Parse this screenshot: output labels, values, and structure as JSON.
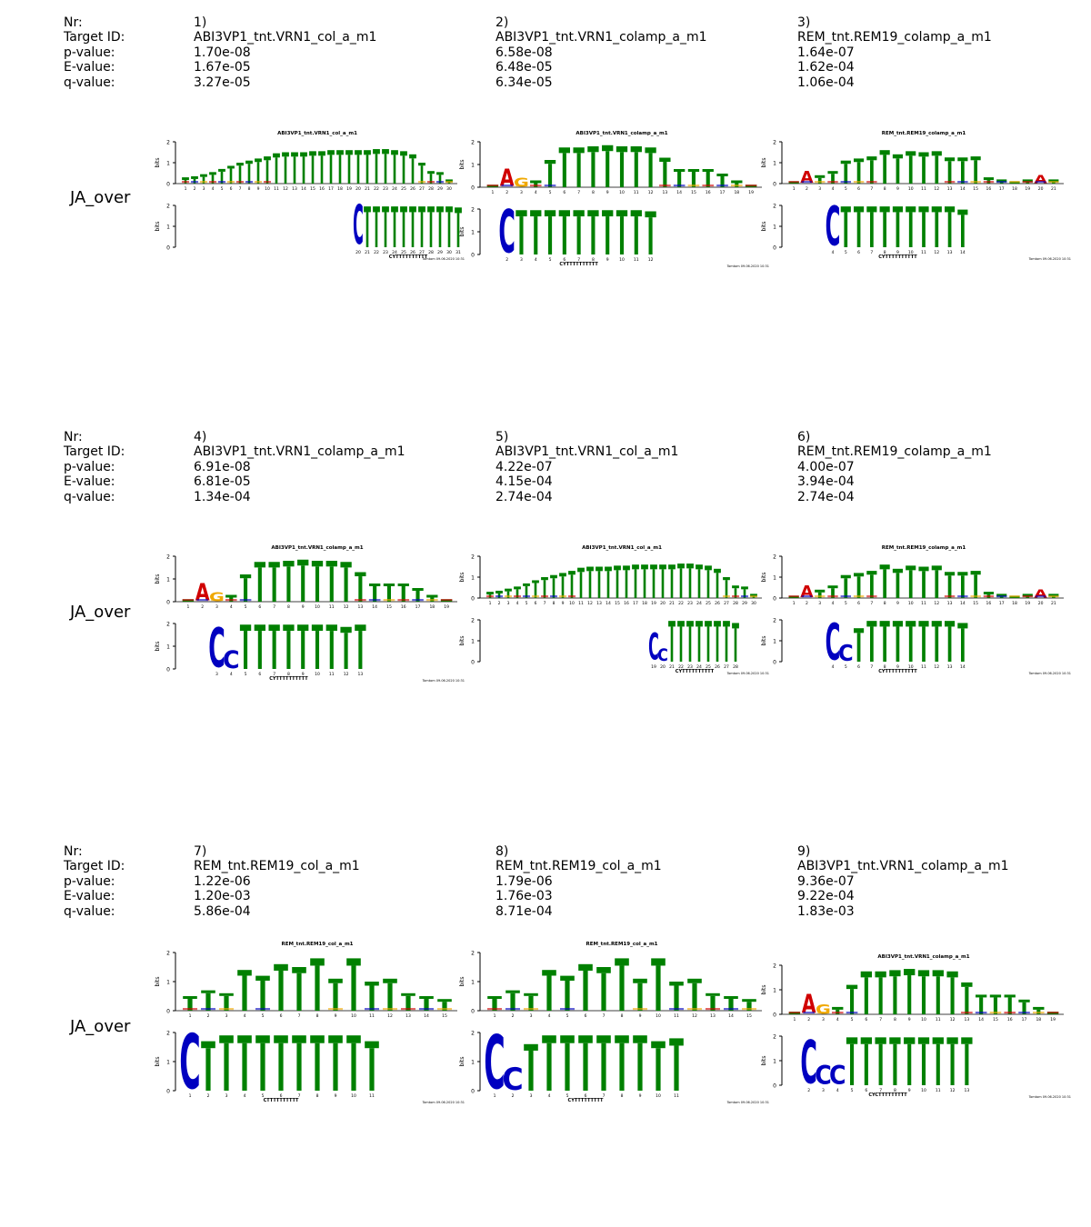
{
  "field_labels": [
    "Nr:",
    "Target ID:",
    "p-value:",
    "E-value:",
    "q-value:"
  ],
  "rows": [
    {
      "query": "JA_over",
      "cells": [
        {
          "nr": "1)",
          "target": "ABI3VP1_tnt.VRN1_col_a_m1",
          "p": "1.70e-08",
          "e": "1.67e-05",
          "q": "3.27e-05",
          "logo_title": "ABI3VP1_tnt.VRN1_col_a_m1",
          "heights": [
            0.3,
            0.35,
            0.45,
            0.55,
            0.7,
            0.85,
            1.0,
            1.1,
            1.2,
            1.3,
            1.45,
            1.5,
            1.5,
            1.5,
            1.55,
            1.55,
            1.6,
            1.6,
            1.6,
            1.6,
            1.6,
            1.65,
            1.65,
            1.6,
            1.55,
            1.4,
            1.0,
            0.6,
            0.55,
            0.2
          ],
          "special": [],
          "query_start": 19,
          "query_heights": [
            2.0,
            1.95,
            1.95,
            1.95,
            1.95,
            1.95,
            1.95,
            1.95,
            1.95,
            1.95,
            1.95,
            1.9
          ],
          "query_glyphs": [
            {
              "i": 0,
              "letter": "C",
              "h": 1.95
            }
          ],
          "consensus": "CYTTTTTTTTTT",
          "footer": "Tomtom 09.06.2020 10:31"
        },
        {
          "nr": "2)",
          "target": "ABI3VP1_tnt.VRN1_colamp_a_m1",
          "p": "6.58e-08",
          "e": "6.48e-05",
          "q": "6.34e-05",
          "logo_title": "ABI3VP1_tnt.VRN1_colamp_a_m1",
          "heights": [
            0.1,
            0.8,
            0.4,
            0.3,
            1.2,
            1.75,
            1.75,
            1.8,
            1.85,
            1.8,
            1.8,
            1.75,
            1.3,
            0.8,
            0.8,
            0.8,
            0.6,
            0.3,
            0.1
          ],
          "special": [
            {
              "i": 1,
              "letter": "A",
              "color": "#d00000"
            },
            {
              "i": 2,
              "letter": "G",
              "color": "#f0a800"
            }
          ],
          "query_start": 1,
          "query_heights": [
            2.0,
            1.95,
            1.95,
            1.95,
            1.95,
            1.95,
            1.95,
            1.95,
            1.95,
            1.95,
            1.9
          ],
          "query_glyphs": [
            {
              "i": 0,
              "letter": "C",
              "h": 1.95
            }
          ],
          "consensus": "CYTTTTTTTTTT",
          "footer": "Tomtom 09.06.2020 10:31"
        },
        {
          "nr": "3)",
          "target": "REM_tnt.REM19_colamp_a_m1",
          "p": "1.64e-07",
          "e": "1.62e-04",
          "q": "1.06e-04",
          "logo_title": "REM_tnt.REM19_colamp_a_m1",
          "heights": [
            0.1,
            0.6,
            0.4,
            0.6,
            1.1,
            1.2,
            1.3,
            1.6,
            1.4,
            1.55,
            1.5,
            1.55,
            1.25,
            1.25,
            1.3,
            0.3,
            0.2,
            0.1,
            0.2,
            0.4,
            0.2
          ],
          "special": [
            {
              "i": 1,
              "letter": "A",
              "color": "#d00000"
            },
            {
              "i": 19,
              "letter": "A",
              "color": "#d00000"
            }
          ],
          "query_start": 3,
          "query_heights": [
            1.95,
            1.95,
            1.95,
            1.95,
            1.95,
            1.95,
            1.95,
            1.95,
            1.95,
            1.95,
            1.8
          ],
          "query_glyphs": [
            {
              "i": 0,
              "letter": "C",
              "h": 1.95
            }
          ],
          "consensus": "CYTTTTTTTTTT",
          "footer": "Tomtom 09.06.2020 10:31"
        }
      ]
    },
    {
      "query": "JA_over",
      "cells": [
        {
          "nr": "4)",
          "target": "ABI3VP1_tnt.VRN1_colamp_a_m1",
          "p": "6.91e-08",
          "e": "6.81e-05",
          "q": "1.34e-04",
          "logo_title": "ABI3VP1_tnt.VRN1_colamp_a_m1",
          "heights": [
            0.1,
            0.8,
            0.4,
            0.3,
            1.2,
            1.75,
            1.75,
            1.8,
            1.85,
            1.8,
            1.8,
            1.75,
            1.3,
            0.8,
            0.8,
            0.8,
            0.6,
            0.3,
            0.1
          ],
          "special": [
            {
              "i": 1,
              "letter": "A",
              "color": "#d00000"
            },
            {
              "i": 2,
              "letter": "G",
              "color": "#f0a800"
            }
          ],
          "query_start": 2,
          "query_heights": [
            1.0,
            1.6,
            1.95,
            1.95,
            1.95,
            1.95,
            1.95,
            1.95,
            1.95,
            1.85,
            1.95
          ],
          "query_glyphs": [
            {
              "i": 0,
              "letter": "C",
              "h": 1.8
            },
            {
              "i": 1,
              "letter": "C",
              "h": 0.8
            }
          ],
          "consensus": "CYTTTTTTTTTT",
          "footer": "Tomtom 09.06.2020 10:31"
        },
        {
          "nr": "5)",
          "target": "ABI3VP1_tnt.VRN1_col_a_m1",
          "p": "4.22e-07",
          "e": "4.15e-04",
          "q": "2.74e-04",
          "logo_title": "ABI3VP1_tnt.VRN1_col_a_m1",
          "heights": [
            0.3,
            0.35,
            0.45,
            0.55,
            0.7,
            0.85,
            1.0,
            1.1,
            1.2,
            1.3,
            1.45,
            1.5,
            1.5,
            1.5,
            1.55,
            1.55,
            1.6,
            1.6,
            1.6,
            1.6,
            1.6,
            1.65,
            1.65,
            1.6,
            1.55,
            1.4,
            1.0,
            0.6,
            0.55,
            0.2
          ],
          "special": [],
          "query_start": 18,
          "query_heights": [
            1.0,
            1.6,
            1.95,
            1.95,
            1.95,
            1.95,
            1.95,
            1.95,
            1.95,
            1.85
          ],
          "query_glyphs": [
            {
              "i": 0,
              "letter": "C",
              "h": 1.3
            },
            {
              "i": 1,
              "letter": "C",
              "h": 0.6
            }
          ],
          "consensus": "CYTTTTTTTTTT",
          "footer": "Tomtom 09.06.2020 10:31"
        },
        {
          "nr": "6)",
          "target": "REM_tnt.REM19_colamp_a_m1",
          "p": "4.00e-07",
          "e": "3.94e-04",
          "q": "2.74e-04",
          "logo_title": "REM_tnt.REM19_colamp_a_m1",
          "heights": [
            0.1,
            0.6,
            0.4,
            0.6,
            1.1,
            1.2,
            1.3,
            1.6,
            1.4,
            1.55,
            1.5,
            1.55,
            1.25,
            1.25,
            1.3,
            0.3,
            0.2,
            0.1,
            0.2,
            0.4,
            0.2
          ],
          "special": [
            {
              "i": 1,
              "letter": "A",
              "color": "#d00000"
            },
            {
              "i": 19,
              "letter": "A",
              "color": "#d00000"
            }
          ],
          "query_start": 3,
          "query_heights": [
            1.0,
            1.6,
            1.6,
            1.95,
            1.95,
            1.95,
            1.95,
            1.95,
            1.95,
            1.95,
            1.85
          ],
          "query_glyphs": [
            {
              "i": 0,
              "letter": "C",
              "h": 1.8
            },
            {
              "i": 1,
              "letter": "C",
              "h": 0.8
            }
          ],
          "consensus": "CYTTTTTTTTTT",
          "footer": "Tomtom 09.06.2020 10:31"
        }
      ]
    },
    {
      "query": "JA_over",
      "cells": [
        {
          "nr": "7)",
          "target": "REM_tnt.REM19_col_a_m1",
          "p": "1.22e-06",
          "e": "1.20e-03",
          "q": "5.86e-04",
          "logo_title": "REM_tnt.REM19_col_a_m1",
          "heights": [
            0.5,
            0.7,
            0.6,
            1.4,
            1.2,
            1.6,
            1.5,
            1.8,
            1.1,
            1.8,
            1.0,
            1.1,
            0.6,
            0.5,
            0.4
          ],
          "special": [],
          "query_start": 0,
          "query_heights": [
            2.0,
            1.7,
            1.9,
            1.9,
            1.9,
            1.9,
            1.9,
            1.9,
            1.9,
            1.9,
            1.7
          ],
          "query_glyphs": [
            {
              "i": 0,
              "letter": "C",
              "h": 1.95
            }
          ],
          "consensus": "CTTTTTTTTTT",
          "footer": "Tomtom 09.06.2020 10:31"
        },
        {
          "nr": "8)",
          "target": "REM_tnt.REM19_col_a_m1",
          "p": "1.79e-06",
          "e": "1.76e-03",
          "q": "8.71e-04",
          "logo_title": "REM_tnt.REM19_col_a_m1",
          "heights": [
            0.5,
            0.7,
            0.6,
            1.4,
            1.2,
            1.6,
            1.5,
            1.8,
            1.1,
            1.8,
            1.0,
            1.1,
            0.6,
            0.5,
            0.4
          ],
          "special": [],
          "query_start": 0,
          "query_heights": [
            1.0,
            1.5,
            1.6,
            1.9,
            1.9,
            1.9,
            1.9,
            1.9,
            1.9,
            1.7,
            1.8
          ],
          "query_glyphs": [
            {
              "i": 0,
              "letter": "C",
              "h": 1.9
            },
            {
              "i": 1,
              "letter": "C",
              "h": 0.8
            }
          ],
          "consensus": "CYTTTTTTTTT",
          "footer": "Tomtom 09.06.2020 10:31"
        },
        {
          "nr": "9)",
          "target": "ABI3VP1_tnt.VRN1_colamp_a_m1",
          "p": "9.36e-07",
          "e": "9.22e-04",
          "q": "1.83e-03",
          "logo_title": "ABI3VP1_tnt.VRN1_colamp_a_m1",
          "heights": [
            0.1,
            0.8,
            0.4,
            0.3,
            1.2,
            1.75,
            1.75,
            1.8,
            1.85,
            1.8,
            1.8,
            1.75,
            1.3,
            0.8,
            0.8,
            0.8,
            0.6,
            0.3,
            0.1
          ],
          "special": [
            {
              "i": 1,
              "letter": "A",
              "color": "#d00000"
            },
            {
              "i": 2,
              "letter": "G",
              "color": "#f0a800"
            }
          ],
          "query_start": 1,
          "query_heights": [
            1.0,
            1.0,
            1.0,
            1.95,
            1.95,
            1.95,
            1.95,
            1.95,
            1.95,
            1.95,
            1.95,
            1.95
          ],
          "query_glyphs": [
            {
              "i": 0,
              "letter": "C",
              "h": 1.8
            },
            {
              "i": 1,
              "letter": "C",
              "h": 0.8
            },
            {
              "i": 2,
              "letter": "C",
              "h": 0.8
            }
          ],
          "consensus": "CYCTTTTTTTTT",
          "footer": "Tomtom 09.06.2020 10:31"
        }
      ]
    }
  ],
  "colors": {
    "T": "#008000",
    "A": "#d00000",
    "C": "#0000c0",
    "G": "#f0a800",
    "axis": "#000000"
  }
}
